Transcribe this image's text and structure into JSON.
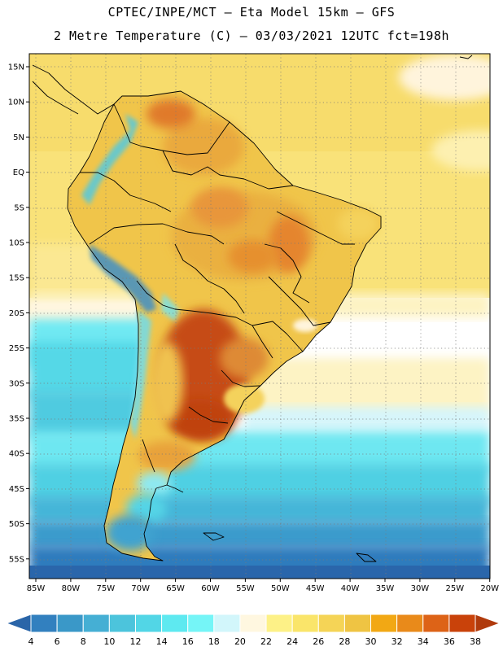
{
  "header": {
    "line1": "CPTEC/INPE/MCT –  Eta Model 15km – GFS",
    "line2": "2 Metre Temperature (C) – 03/03/2021 12UTC fct=198h"
  },
  "map": {
    "lat_labels": [
      "15N",
      "10N",
      "5N",
      "EQ",
      "5S",
      "10S",
      "15S",
      "20S",
      "25S",
      "30S",
      "35S",
      "40S",
      "45S",
      "50S",
      "55S"
    ],
    "lon_labels": [
      "85W",
      "80W",
      "75W",
      "70W",
      "65W",
      "60W",
      "55W",
      "50W",
      "45W",
      "40W",
      "35W",
      "30W",
      "25W",
      "20W"
    ]
  },
  "colorbar": {
    "unit": "C",
    "labels": [
      "4",
      "6",
      "8",
      "10",
      "12",
      "14",
      "16",
      "18",
      "20",
      "22",
      "24",
      "26",
      "28",
      "30",
      "32",
      "34",
      "36",
      "38"
    ],
    "colors": [
      "#2a65a8",
      "#3280bf",
      "#3a98c8",
      "#45afd4",
      "#4cc4dc",
      "#52d6e6",
      "#5ee9f0",
      "#75f5f7",
      "#d2f6fb",
      "#fff7e0",
      "#fdf187",
      "#fae56a",
      "#f5d456",
      "#efc443",
      "#f2a814",
      "#e98a1a",
      "#dd6317",
      "#c9420a",
      "#b03a0c"
    ]
  },
  "colors": {
    "coast": "#000000",
    "grid": "#7a7a7a"
  }
}
